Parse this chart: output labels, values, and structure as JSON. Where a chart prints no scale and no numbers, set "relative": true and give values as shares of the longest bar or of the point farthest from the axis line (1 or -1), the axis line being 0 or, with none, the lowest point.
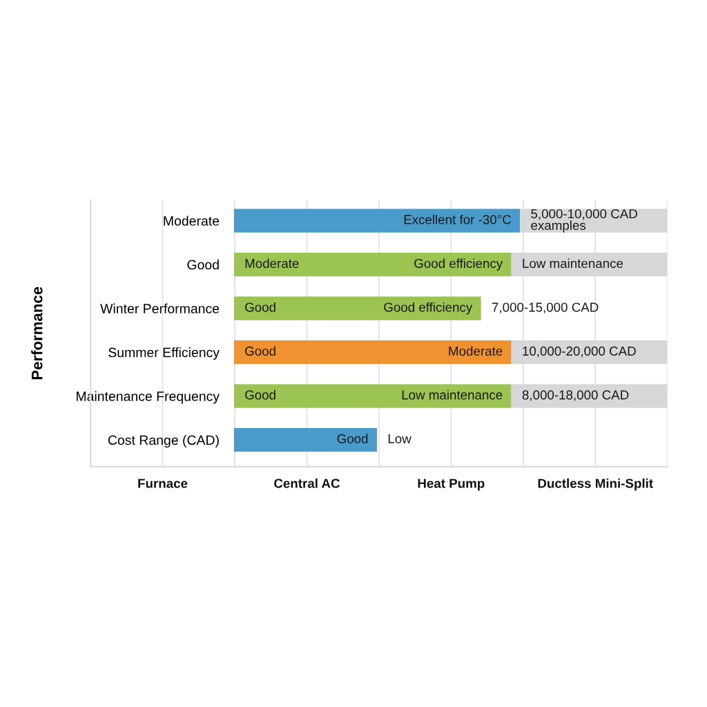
{
  "chart_data": {
    "type": "bar",
    "orientation": "horizontal",
    "stacked": true,
    "relative": true,
    "ylabel": "Performance",
    "categories": [
      "Moderate",
      "Good",
      "Winter Performance",
      "Summer Efficiency",
      "Maintenance Frequency",
      "Cost Range (CAD)"
    ],
    "series": [
      {
        "colors": [
          "#4a9bca",
          "#9bc453",
          "#9bc453",
          "#f0922f",
          "#9bc453",
          "#4a9bca"
        ],
        "values": [
          0.66,
          0.64,
          0.57,
          0.64,
          0.64,
          0.33
        ]
      },
      {
        "color": "#d7d7d7",
        "values": [
          0.34,
          0.36,
          null,
          0.36,
          0.36,
          null
        ]
      }
    ],
    "grid": "x",
    "annotations": [
      {
        "text": "Excellent for -30°C",
        "x": 0.66,
        "y": "Moderate"
      },
      {
        "text": "5,000-10,000 CAD\nexamples",
        "x": 0.66,
        "y": "Moderate"
      },
      {
        "text": "Moderate",
        "x": 0,
        "y": "Good"
      },
      {
        "text": "Good efficiency",
        "x": 0.64,
        "y": "Good"
      },
      {
        "text": "Low maintenance",
        "x": 0.64,
        "y": "Good"
      },
      {
        "text": "Good",
        "x": 0,
        "y": "Winter Performance"
      },
      {
        "text": "Good efficiency",
        "x": 0.57,
        "y": "Winter Performance"
      },
      {
        "text": "7,000-15,000 CAD",
        "x": 0.57,
        "y": "Winter Performance"
      },
      {
        "text": "Good",
        "x": 0,
        "y": "Summer Efficiency"
      },
      {
        "text": "Moderate",
        "x": 0.64,
        "y": "Summer Efficiency"
      },
      {
        "text": "10,000-20,000 CAD",
        "x": 0.64,
        "y": "Summer Efficiency"
      },
      {
        "text": "Good",
        "x": 0,
        "y": "Maintenance Frequency"
      },
      {
        "text": "Low maintenance",
        "x": 0.64,
        "y": "Maintenance Frequency"
      },
      {
        "text": "8,000-18,000 CAD",
        "x": 0.64,
        "y": "Maintenance Frequency"
      },
      {
        "text": "Good",
        "x": 0.33,
        "y": "Cost Range (CAD)"
      },
      {
        "text": "Low",
        "x": 0.33,
        "y": "Cost Range (CAD)"
      },
      "Furnace",
      "Central AC",
      "Heat Pump",
      "Ductless Mini-Split"
    ]
  }
}
